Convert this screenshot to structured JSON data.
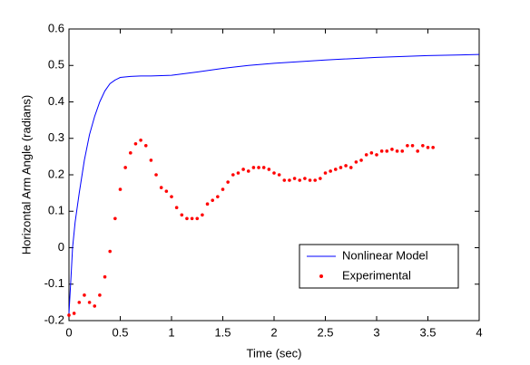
{
  "chart_data": {
    "type": "line",
    "xlabel": "Time (sec)",
    "ylabel": "Horizontal Arm Angle (radians)",
    "xlim": [
      0,
      4
    ],
    "ylim": [
      -0.2,
      0.6
    ],
    "xticks": [
      0,
      0.5,
      1,
      1.5,
      2,
      2.5,
      3,
      3.5,
      4
    ],
    "yticks": [
      -0.2,
      -0.1,
      0,
      0.1,
      0.2,
      0.3,
      0.4,
      0.5,
      0.6
    ],
    "legend": "lower right",
    "series": [
      {
        "name": "Nonlinear Model",
        "color": "#0000ff",
        "style": "line",
        "x": [
          0,
          0.02,
          0.035,
          0.06,
          0.1,
          0.15,
          0.2,
          0.25,
          0.3,
          0.35,
          0.4,
          0.45,
          0.5,
          0.6,
          0.7,
          0.8,
          1,
          1.25,
          1.5,
          1.75,
          2,
          2.5,
          3,
          3.5,
          4
        ],
        "values": [
          -0.18,
          -0.08,
          0,
          0.07,
          0.15,
          0.24,
          0.31,
          0.36,
          0.4,
          0.43,
          0.45,
          0.46,
          0.467,
          0.47,
          0.471,
          0.471,
          0.473,
          0.482,
          0.492,
          0.5,
          0.506,
          0.515,
          0.522,
          0.527,
          0.53
        ]
      },
      {
        "name": "Experimental",
        "color": "#ff0000",
        "style": "markers",
        "x": [
          0,
          0.05,
          0.1,
          0.15,
          0.2,
          0.25,
          0.3,
          0.35,
          0.4,
          0.45,
          0.5,
          0.55,
          0.6,
          0.65,
          0.7,
          0.75,
          0.8,
          0.85,
          0.9,
          0.95,
          1,
          1.05,
          1.1,
          1.15,
          1.2,
          1.25,
          1.3,
          1.35,
          1.4,
          1.45,
          1.5,
          1.55,
          1.6,
          1.65,
          1.7,
          1.75,
          1.8,
          1.85,
          1.9,
          1.95,
          2,
          2.05,
          2.1,
          2.15,
          2.2,
          2.25,
          2.3,
          2.35,
          2.4,
          2.45,
          2.5,
          2.55,
          2.6,
          2.65,
          2.7,
          2.75,
          2.8,
          2.85,
          2.9,
          2.95,
          3,
          3.05,
          3.1,
          3.15,
          3.2,
          3.25,
          3.3,
          3.35,
          3.4,
          3.45,
          3.5,
          3.55
        ],
        "values": [
          -0.185,
          -0.18,
          -0.15,
          -0.13,
          -0.15,
          -0.16,
          -0.13,
          -0.08,
          -0.01,
          0.08,
          0.16,
          0.22,
          0.26,
          0.285,
          0.295,
          0.28,
          0.24,
          0.2,
          0.165,
          0.155,
          0.14,
          0.11,
          0.09,
          0.08,
          0.08,
          0.08,
          0.09,
          0.12,
          0.13,
          0.14,
          0.16,
          0.18,
          0.2,
          0.205,
          0.215,
          0.21,
          0.22,
          0.22,
          0.22,
          0.215,
          0.205,
          0.2,
          0.185,
          0.185,
          0.19,
          0.185,
          0.19,
          0.185,
          0.185,
          0.19,
          0.205,
          0.21,
          0.215,
          0.22,
          0.225,
          0.22,
          0.235,
          0.24,
          0.255,
          0.26,
          0.255,
          0.265,
          0.265,
          0.27,
          0.265,
          0.265,
          0.28,
          0.28,
          0.265,
          0.28,
          0.275,
          0.275
        ]
      }
    ]
  }
}
